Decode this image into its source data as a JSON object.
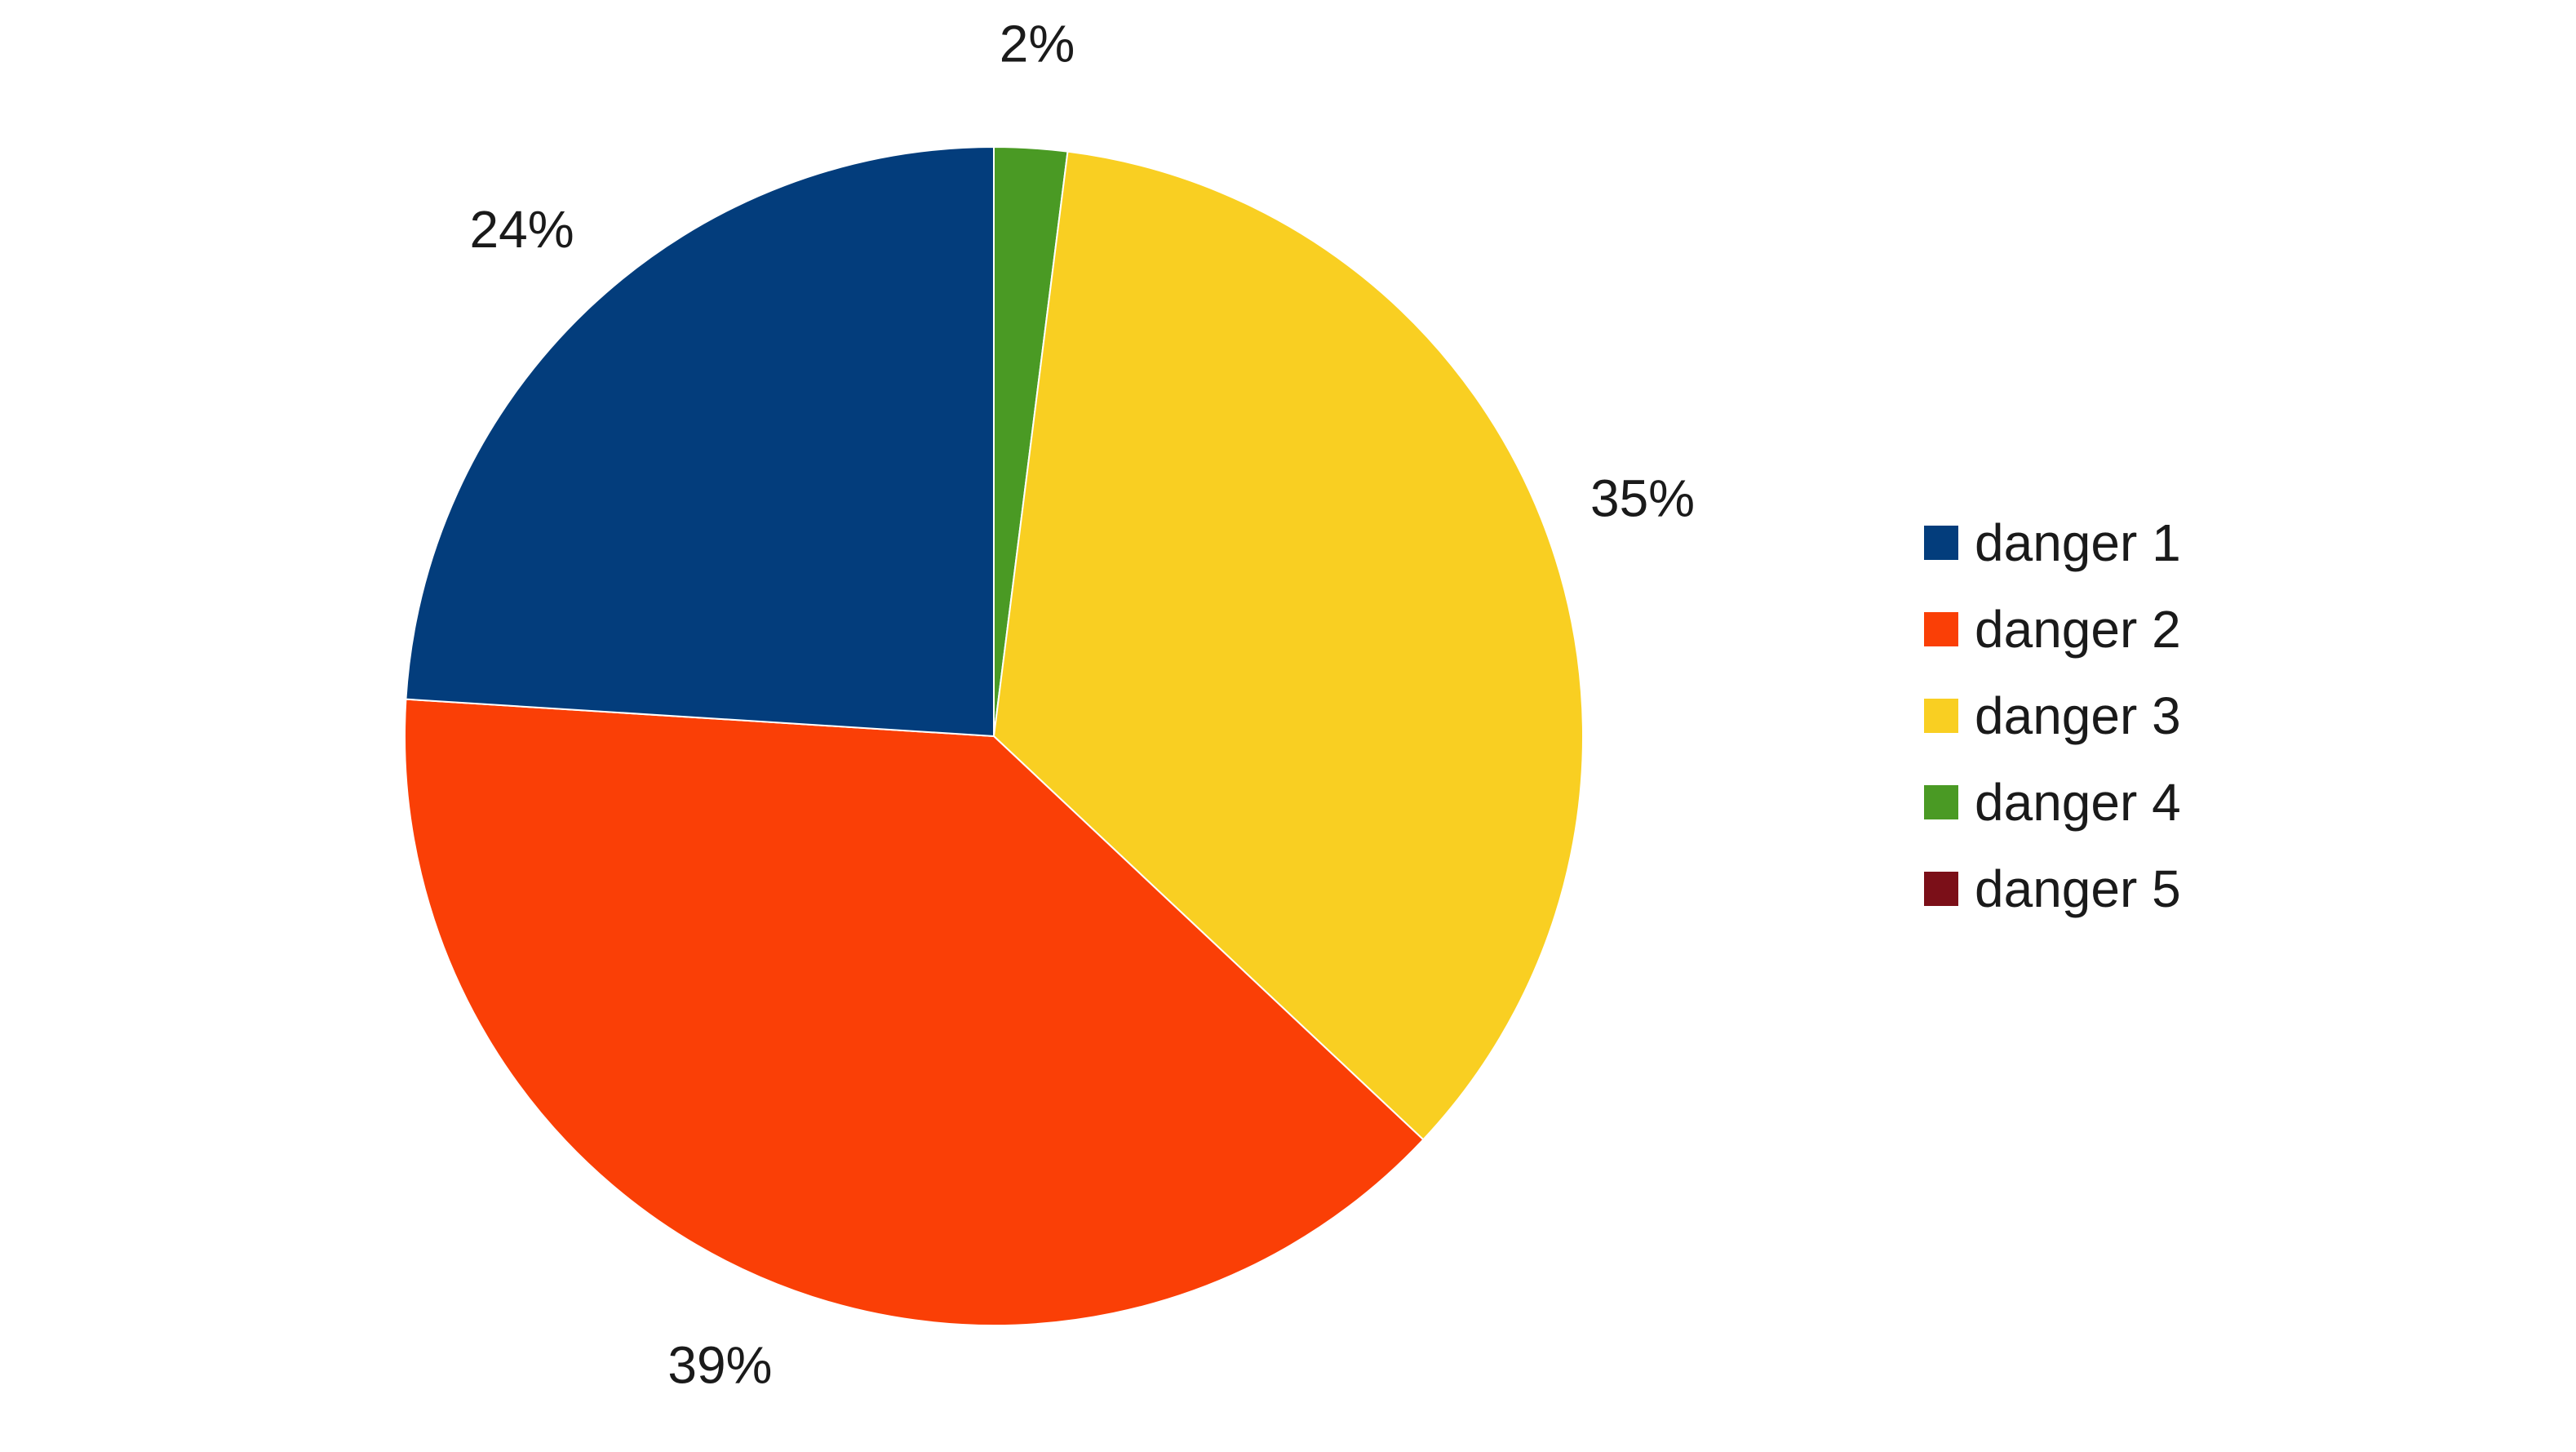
{
  "chart_data": {
    "type": "pie",
    "title": "",
    "slices": [
      {
        "label": "danger 4",
        "value": 2,
        "display": "2%",
        "color": "#4a9a24"
      },
      {
        "label": "danger 3",
        "value": 35,
        "display": "35%",
        "color": "#f9cf22"
      },
      {
        "label": "danger 2",
        "value": 39,
        "display": "39%",
        "color": "#fa3f06"
      },
      {
        "label": "danger 1",
        "value": 24,
        "display": "24%",
        "color": "#033d7c"
      }
    ],
    "legend": {
      "placement": "right",
      "items": [
        {
          "label": "danger 1",
          "color": "#033d7c"
        },
        {
          "label": "danger 2",
          "color": "#fa3f06"
        },
        {
          "label": "danger 3",
          "color": "#f9cf22"
        },
        {
          "label": "danger 4",
          "color": "#4a9a24"
        },
        {
          "label": "danger 5",
          "color": "#7b0f18"
        }
      ]
    }
  }
}
